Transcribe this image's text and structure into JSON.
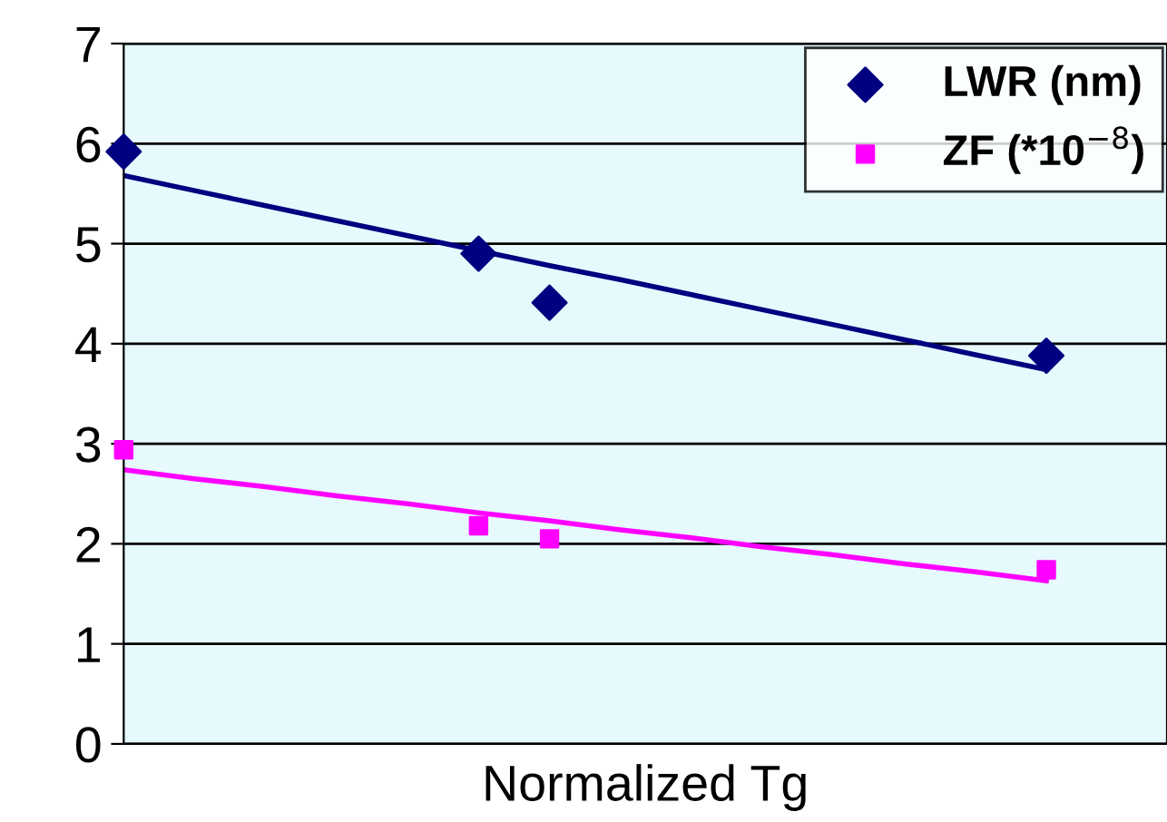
{
  "chart_data": {
    "type": "scatter",
    "xlabel": "Normalized Tg",
    "categories": [
      null,
      null,
      null,
      null,
      null,
      null,
      null,
      null,
      null,
      null,
      null,
      null,
      null,
      null,
      null
    ],
    "ylim": [
      0,
      7
    ],
    "yticks": [
      0,
      1,
      2,
      3,
      4,
      5,
      6,
      7
    ],
    "tick_labels": "y",
    "grid": "y",
    "legend": "top right",
    "series": [
      {
        "name": "LWR (nm)",
        "color": "#000080",
        "marker": "diamond",
        "values": [
          5.92,
          null,
          null,
          null,
          null,
          4.9,
          4.41,
          null,
          null,
          null,
          null,
          null,
          null,
          3.88,
          null
        ]
      },
      {
        "name": "ZF (*10$^{−8}$)",
        "color": "#ff00ff",
        "marker": "square",
        "values": [
          2.94,
          null,
          null,
          null,
          null,
          2.18,
          2.05,
          null,
          null,
          null,
          null,
          null,
          null,
          1.74,
          null
        ]
      },
      {
        "type": "line",
        "color": "#000080",
        "values": [
          5.68,
          5.53,
          5.38,
          5.23,
          5.08,
          4.93,
          4.78,
          4.64,
          4.49,
          4.34,
          4.19,
          4.04,
          3.89,
          3.74,
          null
        ]
      },
      {
        "type": "line",
        "color": "#ff00ff",
        "values": [
          2.74,
          2.65,
          2.57,
          2.48,
          2.4,
          2.31,
          2.23,
          2.14,
          2.06,
          1.97,
          1.89,
          1.8,
          1.72,
          1.63,
          null
        ]
      }
    ]
  }
}
